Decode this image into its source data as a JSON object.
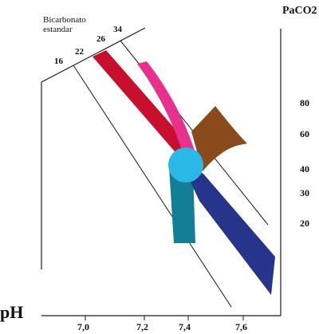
{
  "title_pco2": "PaCO2",
  "title_ph": "pH",
  "bicarbonate_label_line1": "Bicarbonato",
  "bicarbonate_label_line2": "estandar",
  "bicarbonate_ticks": [
    "16",
    "22",
    "26",
    "34"
  ],
  "pco2_ticks": [
    "80",
    "60",
    "40",
    "30",
    "20"
  ],
  "ph_ticks": [
    "7,0",
    "7,2",
    "7,4",
    "7,6"
  ],
  "colors": {
    "red_band": "#c8102e",
    "pink_band": "#e8318c",
    "brown_band": "#8b4a1c",
    "teal_band": "#127f96",
    "navy_band": "#27348b",
    "center_ellipse": "#2ab8e6",
    "lines": "#1a1a1a"
  }
}
